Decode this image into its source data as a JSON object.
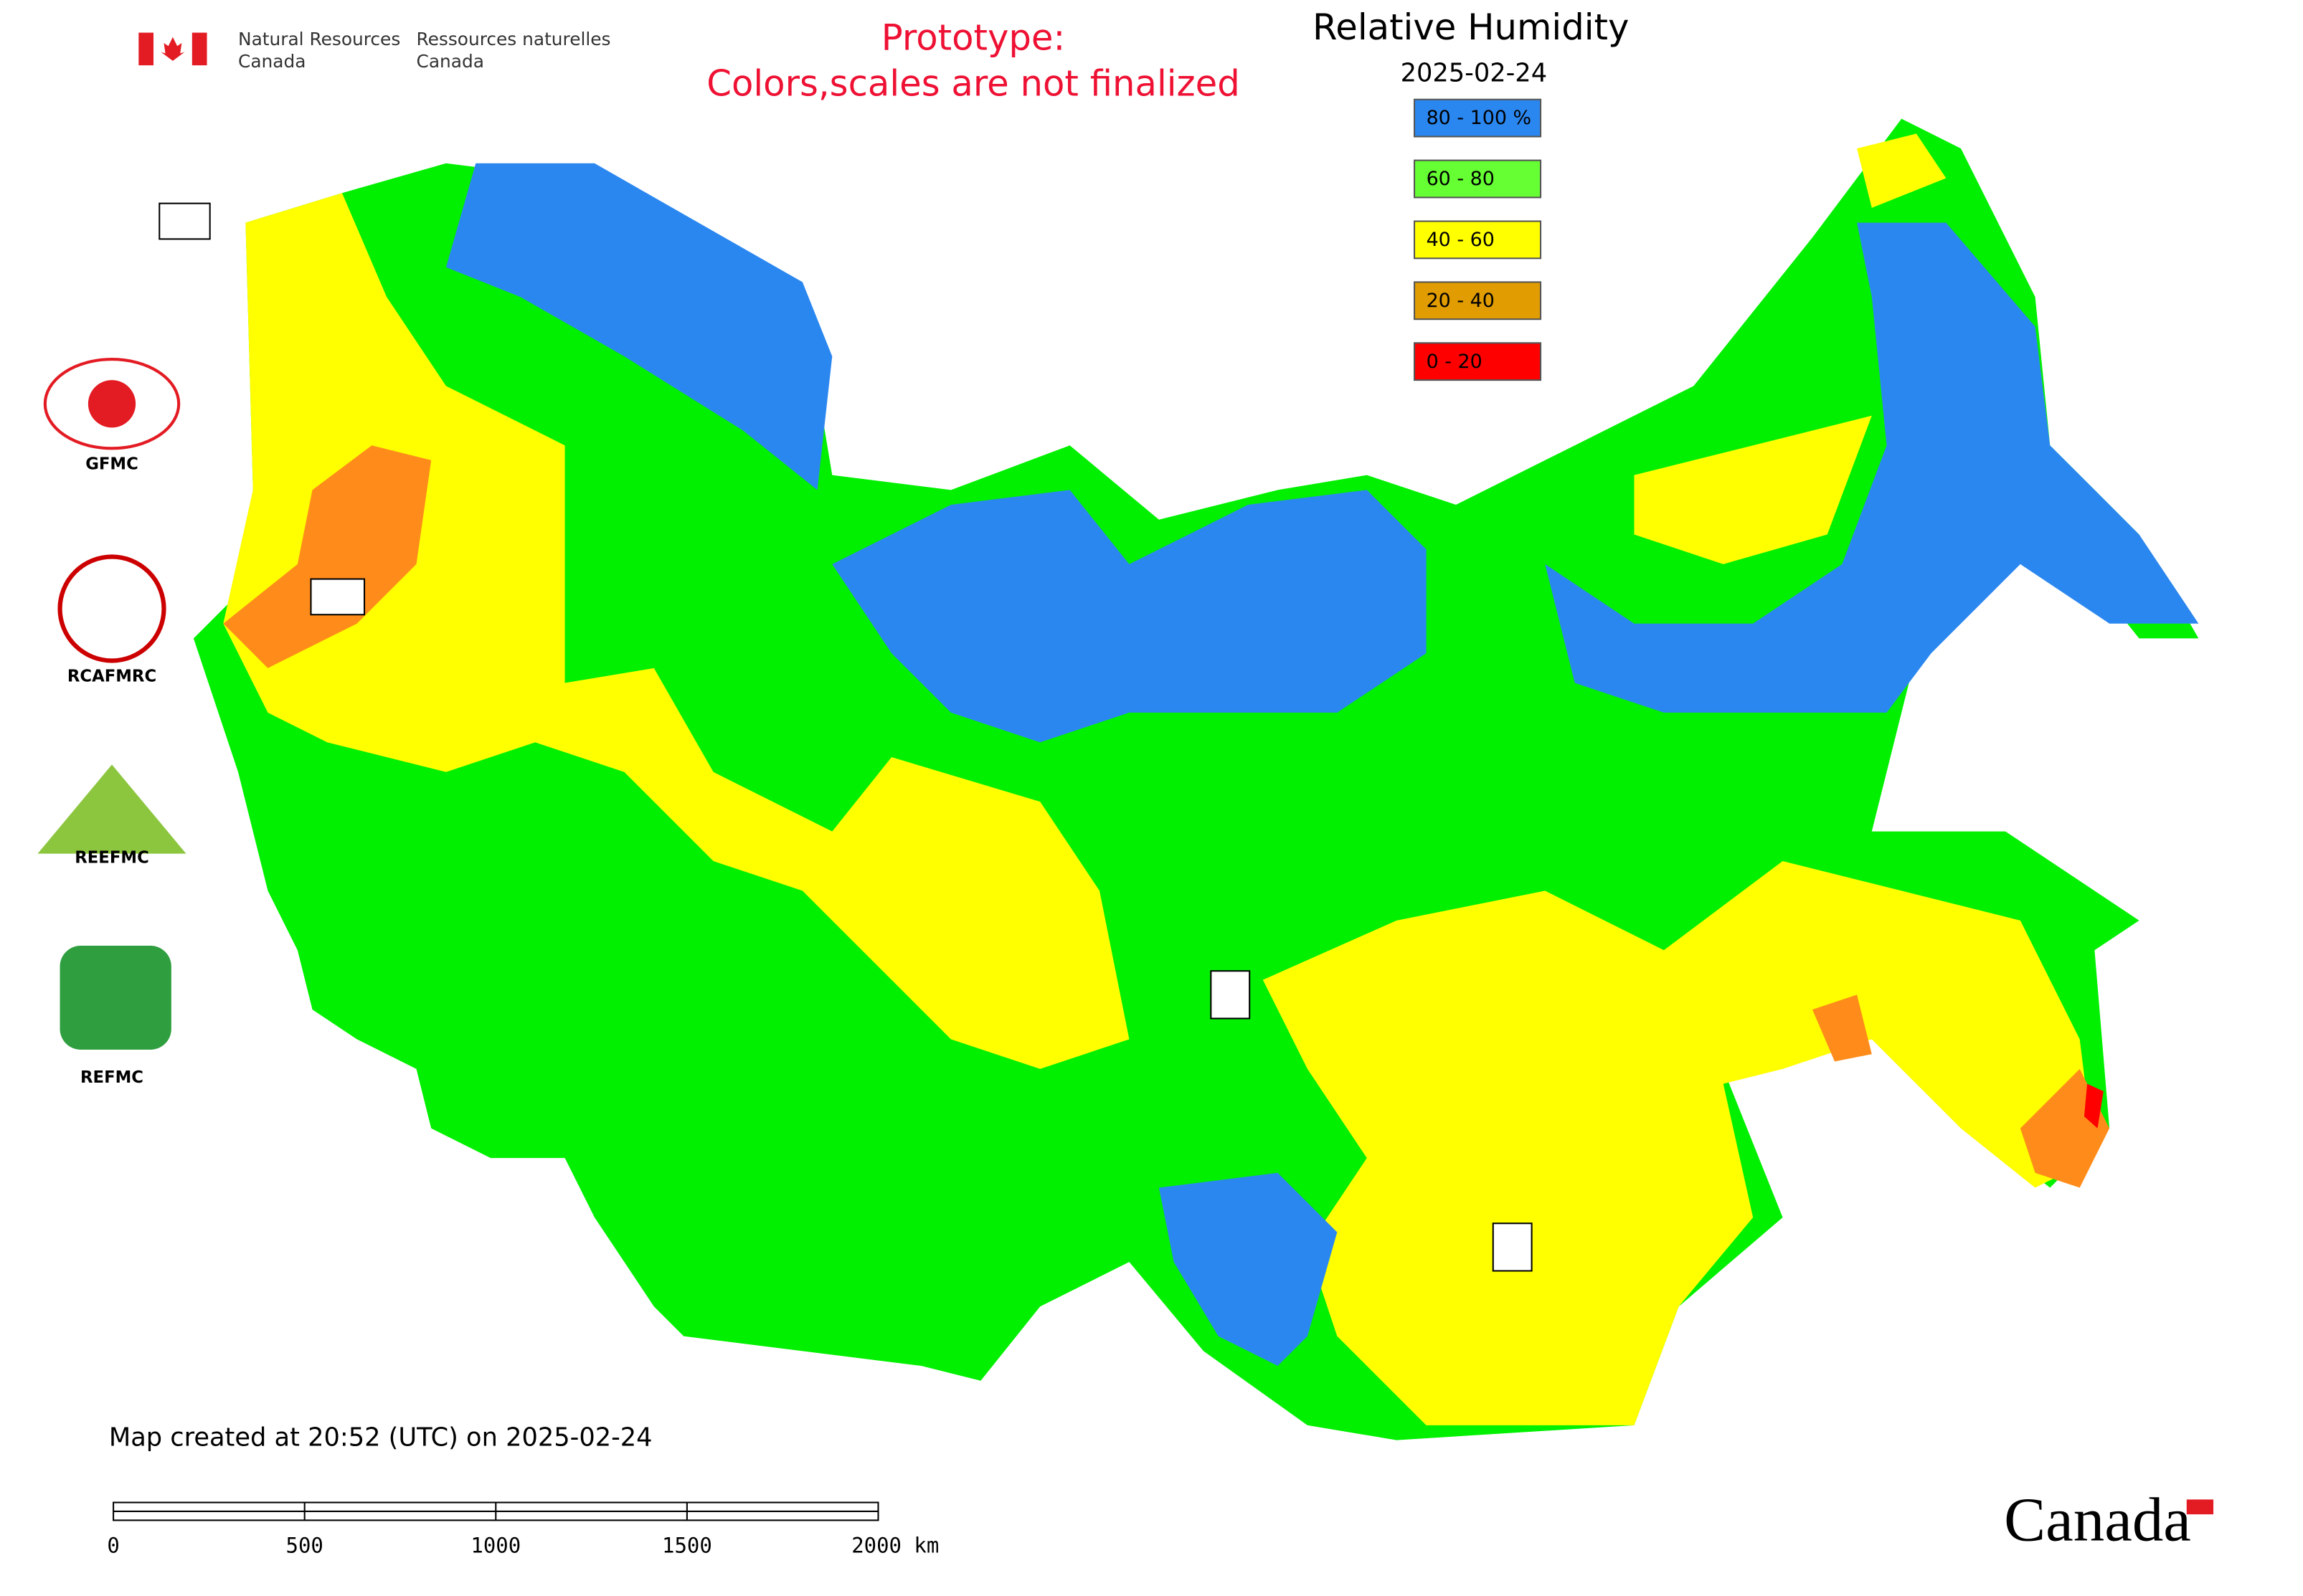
{
  "header": {
    "agency_en_line1": "Natural Resources",
    "agency_en_line2": "Canada",
    "agency_fr_line1": "Ressources naturelles",
    "agency_fr_line2": "Canada",
    "prototype_line1": "Prototype:",
    "prototype_line2": "Colors,scales are not finalized"
  },
  "map": {
    "title": "Relative Humidity",
    "date": "2025-02-24",
    "legend": [
      {
        "label": "80 - 100 %",
        "color": "#2b87f0"
      },
      {
        "label": "60 - 80",
        "color": "#66ff33"
      },
      {
        "label": "40 - 60",
        "color": "#ffff00"
      },
      {
        "label": "20 - 40",
        "color": "#e09c00"
      },
      {
        "label": "0 - 20",
        "color": "#ff0000"
      }
    ]
  },
  "logos": [
    "GFMC",
    "RCAFMRC",
    "REEFMC",
    "REFMC"
  ],
  "footer": {
    "created": "Map created at 20:52 (UTC) on 2025-02-24",
    "scale_labels": [
      "0",
      "500",
      "1000",
      "1500",
      "2000 km"
    ],
    "wordmark": "Canada"
  }
}
